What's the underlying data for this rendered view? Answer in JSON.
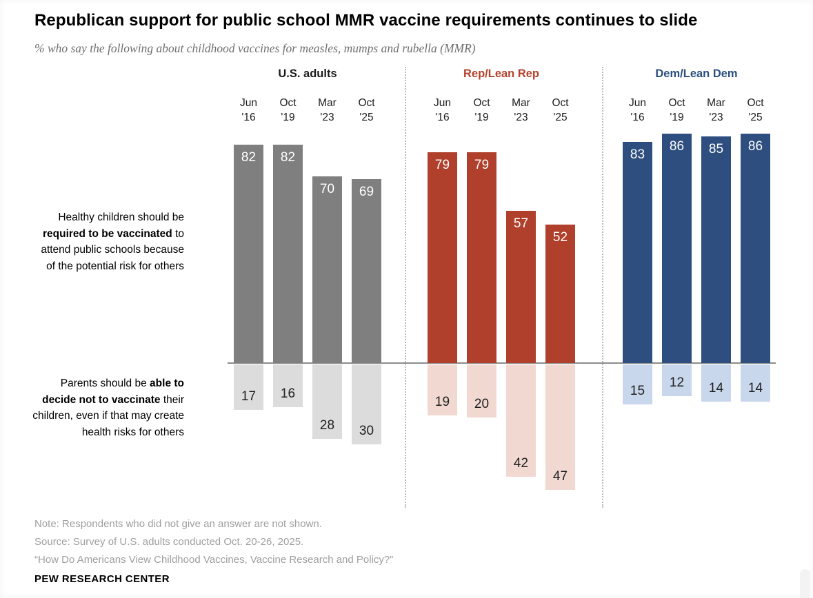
{
  "page": {
    "title": "Republican support for public school MMR vaccine requirements continues to slide",
    "subtitle": "% who say the following about childhood vaccines for measles, mumps and rubella (MMR)",
    "notes": [
      "Note: Respondents who did not give an answer are not shown.",
      "Source: Survey of U.S. adults conducted Oct. 20-26, 2025.",
      "“How Do Americans View Childhood Vaccines, Vaccine Research and Policy?”"
    ],
    "brand": "PEW RESEARCH CENTER"
  },
  "row_labels": [
    {
      "segments": [
        {
          "t": "Healthy children should be ",
          "b": false
        },
        {
          "t": "required to be vaccinated",
          "b": true
        },
        {
          "t": " to attend public schools because of the potential risk for others",
          "b": false
        }
      ]
    },
    {
      "segments": [
        {
          "t": "Parents should be ",
          "b": false
        },
        {
          "t": "able to decide not to vaccinate",
          "b": true
        },
        {
          "t": " their children, even if that may create health risks for others",
          "b": false
        }
      ]
    }
  ],
  "chart_data": {
    "type": "bar",
    "categories": [
      "Jun '16",
      "Oct '19",
      "Mar '23",
      "Oct '25"
    ],
    "statements": [
      "Healthy children should be required to be vaccinated to attend public schools because of the potential risk for others",
      "Parents should be able to decide not to vaccinate their children, even if that may create health risks for others"
    ],
    "unit": "%",
    "ylim": [
      0,
      100
    ],
    "layout": "diverging columns above/below shared baseline, three party panels separated by dotted lines",
    "groups": [
      {
        "label": "U.S. adults",
        "header_color": "#1a1a1a",
        "color_top": "#7f7f7f",
        "color_bottom": "#dcdcdc",
        "required_values": [
          82,
          82,
          70,
          69
        ],
        "decide_values": [
          17,
          16,
          28,
          30
        ]
      },
      {
        "label": "Rep/Lean Rep",
        "header_color": "#b5412c",
        "color_top": "#b0402b",
        "color_bottom": "#f1d9d2",
        "required_values": [
          79,
          79,
          57,
          52
        ],
        "decide_values": [
          19,
          20,
          42,
          47
        ]
      },
      {
        "label": "Dem/Lean Dem",
        "header_color": "#2b4d7e",
        "color_top": "#2d4e7f",
        "color_bottom": "#c8d7eb",
        "required_values": [
          83,
          86,
          85,
          86
        ],
        "decide_values": [
          15,
          12,
          14,
          14
        ]
      }
    ]
  }
}
